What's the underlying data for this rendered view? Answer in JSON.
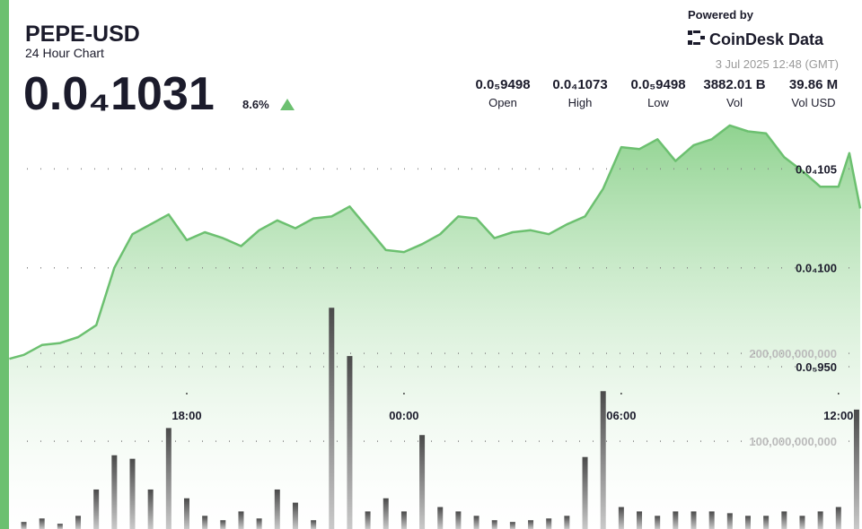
{
  "header": {
    "title": "PEPE-USD",
    "subtitle": "24 Hour Chart",
    "price": "0.0₄1031",
    "change": "8.6%",
    "powered_by": "Powered by",
    "brand": "CoinDesk Data",
    "timestamp": "3 Jul 2025 12:48 (GMT)",
    "stats": [
      {
        "value": "0.0₅9498",
        "label": "Open"
      },
      {
        "value": "0.0₄1073",
        "label": "High"
      },
      {
        "value": "0.0₅9498",
        "label": "Low"
      },
      {
        "value": "3882.01 B",
        "label": "Vol"
      },
      {
        "value": "39.86 M",
        "label": "Vol USD"
      }
    ]
  },
  "chart_data": {
    "type": "line",
    "color": "#6cc070",
    "grid": true,
    "x": [
      13.1,
      13.5,
      14,
      14.5,
      15,
      15.5,
      16,
      16.5,
      17,
      17.5,
      18,
      18.5,
      19,
      19.5,
      20,
      20.5,
      21,
      21.5,
      22,
      22.5,
      23,
      23.5,
      24,
      24.5,
      25,
      25.5,
      26,
      26.5,
      27,
      27.5,
      28,
      28.5,
      29,
      29.5,
      30,
      30.5,
      31,
      31.5,
      32,
      32.5,
      33,
      33.5,
      34,
      34.5,
      35,
      35.5,
      36,
      36.3,
      36.6
    ],
    "values": [
      9.54e-06,
      9.56e-06,
      9.61e-06,
      9.62e-06,
      9.65e-06,
      9.71e-06,
      1e-05,
      1.017e-05,
      1.022e-05,
      1.027e-05,
      1.014e-05,
      1.018e-05,
      1.015e-05,
      1.011e-05,
      1.019e-05,
      1.024e-05,
      1.02e-05,
      1.025e-05,
      1.026e-05,
      1.031e-05,
      1.02e-05,
      1.009e-05,
      1.008e-05,
      1.012e-05,
      1.017e-05,
      1.026e-05,
      1.025e-05,
      1.015e-05,
      1.018e-05,
      1.019e-05,
      1.017e-05,
      1.022e-05,
      1.026e-05,
      1.04e-05,
      1.061e-05,
      1.06e-05,
      1.065e-05,
      1.054e-05,
      1.062e-05,
      1.065e-05,
      1.072e-05,
      1.069e-05,
      1.068e-05,
      1.056e-05,
      1.049e-05,
      1.041e-05,
      1.041e-05,
      1.058e-05,
      1.03e-05
    ],
    "xlim": [
      13.09,
      36.65
    ],
    "xticks": [
      {
        "value": 18,
        "label": "18:00"
      },
      {
        "value": 24,
        "label": "00:00"
      },
      {
        "value": 30,
        "label": "06:00"
      },
      {
        "value": 36,
        "label": "12:00"
      }
    ],
    "ylim": [
      8.68e-06,
      1.081e-05
    ],
    "yticks": [
      {
        "value": 9.5e-06,
        "label": "0.0₅950"
      },
      {
        "value": 1e-05,
        "label": "0.0₄100"
      },
      {
        "value": 1.05e-05,
        "label": "0.0₄105"
      }
    ],
    "volume": {
      "type": "bar",
      "color": "#8a8a8a",
      "x": [
        13.5,
        14,
        14.5,
        15,
        15.5,
        16,
        16.5,
        17,
        17.5,
        18,
        18.5,
        19,
        19.5,
        20,
        20.5,
        21,
        21.5,
        22,
        22.5,
        23,
        23.5,
        24,
        24.5,
        25,
        25.5,
        26,
        26.5,
        27,
        27.5,
        28,
        28.5,
        29,
        29.5,
        30,
        30.5,
        31,
        31.5,
        32,
        32.5,
        33,
        33.5,
        34,
        34.5,
        35,
        35.5,
        36,
        36.5
      ],
      "values": [
        8000000000,
        12000000000,
        6000000000,
        15000000000,
        45000000000,
        84000000000,
        80000000000,
        45000000000,
        115000000000,
        35000000000,
        15000000000,
        10000000000,
        20000000000,
        12000000000,
        45000000000,
        30000000000,
        10000000000,
        252000000000,
        197000000000,
        20000000000,
        35000000000,
        20000000000,
        107000000000,
        25000000000,
        20000000000,
        15000000000,
        10000000000,
        8000000000,
        10000000000,
        12000000000,
        15000000000,
        82000000000,
        157000000000,
        25000000000,
        20000000000,
        15000000000,
        20000000000,
        20000000000,
        20000000000,
        18000000000,
        15000000000,
        15000000000,
        20000000000,
        15000000000,
        20000000000,
        25000000000,
        136000000000
      ],
      "ylim": [
        0,
        480000000000
      ],
      "yticks": [
        {
          "value": 100000000000,
          "label": "100,000,000,000"
        },
        {
          "value": 200000000000,
          "label": "200,000,000,000"
        }
      ]
    }
  }
}
